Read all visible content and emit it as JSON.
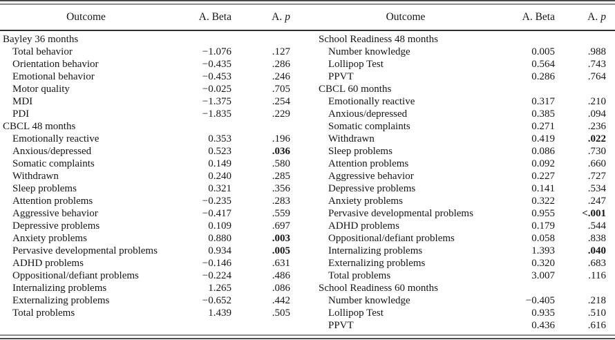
{
  "halves": [
    {
      "header": {
        "outcome": "Outcome",
        "beta": "A. Beta",
        "p_prefix": "A.",
        "p_symbol": "p"
      },
      "rows": [
        {
          "label": "Bayley 36 months",
          "section": true
        },
        {
          "label": "Total behavior",
          "beta": "−1.076",
          "p": ".127"
        },
        {
          "label": "Orientation behavior",
          "beta": "−0.435",
          "p": ".286"
        },
        {
          "label": "Emotional behavior",
          "beta": "−0.453",
          "p": ".246"
        },
        {
          "label": "Motor quality",
          "beta": "−0.025",
          "p": ".705"
        },
        {
          "label": "MDI",
          "beta": "−1.375",
          "p": ".254"
        },
        {
          "label": "PDI",
          "beta": "−1.835",
          "p": ".229"
        },
        {
          "label": "CBCL 48 months",
          "section": true
        },
        {
          "label": "Emotionally reactive",
          "beta": "0.353",
          "p": ".196"
        },
        {
          "label": "Anxious/depressed",
          "beta": "0.523",
          "p": ".036",
          "p_bold": true
        },
        {
          "label": "Somatic complaints",
          "beta": "0.149",
          "p": ".580"
        },
        {
          "label": "Withdrawn",
          "beta": "0.240",
          "p": ".285"
        },
        {
          "label": "Sleep problems",
          "beta": "0.321",
          "p": ".356"
        },
        {
          "label": "Attention problems",
          "beta": "−0.235",
          "p": ".283"
        },
        {
          "label": "Aggressive behavior",
          "beta": "−0.417",
          "p": ".559"
        },
        {
          "label": "Depressive problems",
          "beta": "0.109",
          "p": ".697"
        },
        {
          "label": "Anxiety problems",
          "beta": "0.880",
          "p": ".003",
          "p_bold": true
        },
        {
          "label": "Pervasive developmental problems",
          "beta": "0.934",
          "p": ".005",
          "p_bold": true
        },
        {
          "label": "ADHD problems",
          "beta": "−0.146",
          "p": ".631"
        },
        {
          "label": "Oppositional/defiant problems",
          "beta": "−0.224",
          "p": ".486"
        },
        {
          "label": "Internalizing problems",
          "beta": "1.265",
          "p": ".086"
        },
        {
          "label": "Externalizing problems",
          "beta": "−0.652",
          "p": ".442"
        },
        {
          "label": "Total problems",
          "beta": "1.439",
          "p": ".505"
        }
      ]
    },
    {
      "header": {
        "outcome": "Outcome",
        "beta": "A. Beta",
        "p_prefix": "A.",
        "p_symbol": "p"
      },
      "rows": [
        {
          "label": "School Readiness 48 months",
          "section": true
        },
        {
          "label": "Number knowledge",
          "beta": "0.005",
          "p": ".988"
        },
        {
          "label": "Lollipop Test",
          "beta": "0.564",
          "p": ".743"
        },
        {
          "label": "PPVT",
          "beta": "0.286",
          "p": ".764"
        },
        {
          "label": "CBCL 60 months",
          "section": true
        },
        {
          "label": "Emotionally reactive",
          "beta": "0.317",
          "p": ".210"
        },
        {
          "label": "Anxious/depressed",
          "beta": "0.385",
          "p": ".094"
        },
        {
          "label": "Somatic complaints",
          "beta": "0.271",
          "p": ".236"
        },
        {
          "label": "Withdrawn",
          "beta": "0.419",
          "p": ".022",
          "p_bold": true
        },
        {
          "label": "Sleep problems",
          "beta": "0.086",
          "p": ".730"
        },
        {
          "label": "Attention problems",
          "beta": "0.092",
          "p": ".660"
        },
        {
          "label": "Aggressive behavior",
          "beta": "0.227",
          "p": ".727"
        },
        {
          "label": "Depressive problems",
          "beta": "0.141",
          "p": ".534"
        },
        {
          "label": "Anxiety problems",
          "beta": "0.322",
          "p": ".247"
        },
        {
          "label": "Pervasive developmental problems",
          "beta": "0.955",
          "p": "<.001",
          "p_bold": true
        },
        {
          "label": "ADHD problems",
          "beta": "0.179",
          "p": ".544"
        },
        {
          "label": "Oppositional/defiant problems",
          "beta": "0.058",
          "p": ".838"
        },
        {
          "label": "Internalizing problems",
          "beta": "1.393",
          "p": ".040",
          "p_bold": true
        },
        {
          "label": "Externalizing problems",
          "beta": "0.320",
          "p": ".683"
        },
        {
          "label": "Total problems",
          "beta": "3.007",
          "p": ".116"
        },
        {
          "label": "School Readiness 60 months",
          "section": true
        },
        {
          "label": "Number knowledge",
          "beta": "−0.405",
          "p": ".218"
        },
        {
          "label": "Lollipop Test",
          "beta": "0.935",
          "p": ".510"
        },
        {
          "label": "PPVT",
          "beta": "0.436",
          "p": ".616"
        }
      ]
    }
  ]
}
